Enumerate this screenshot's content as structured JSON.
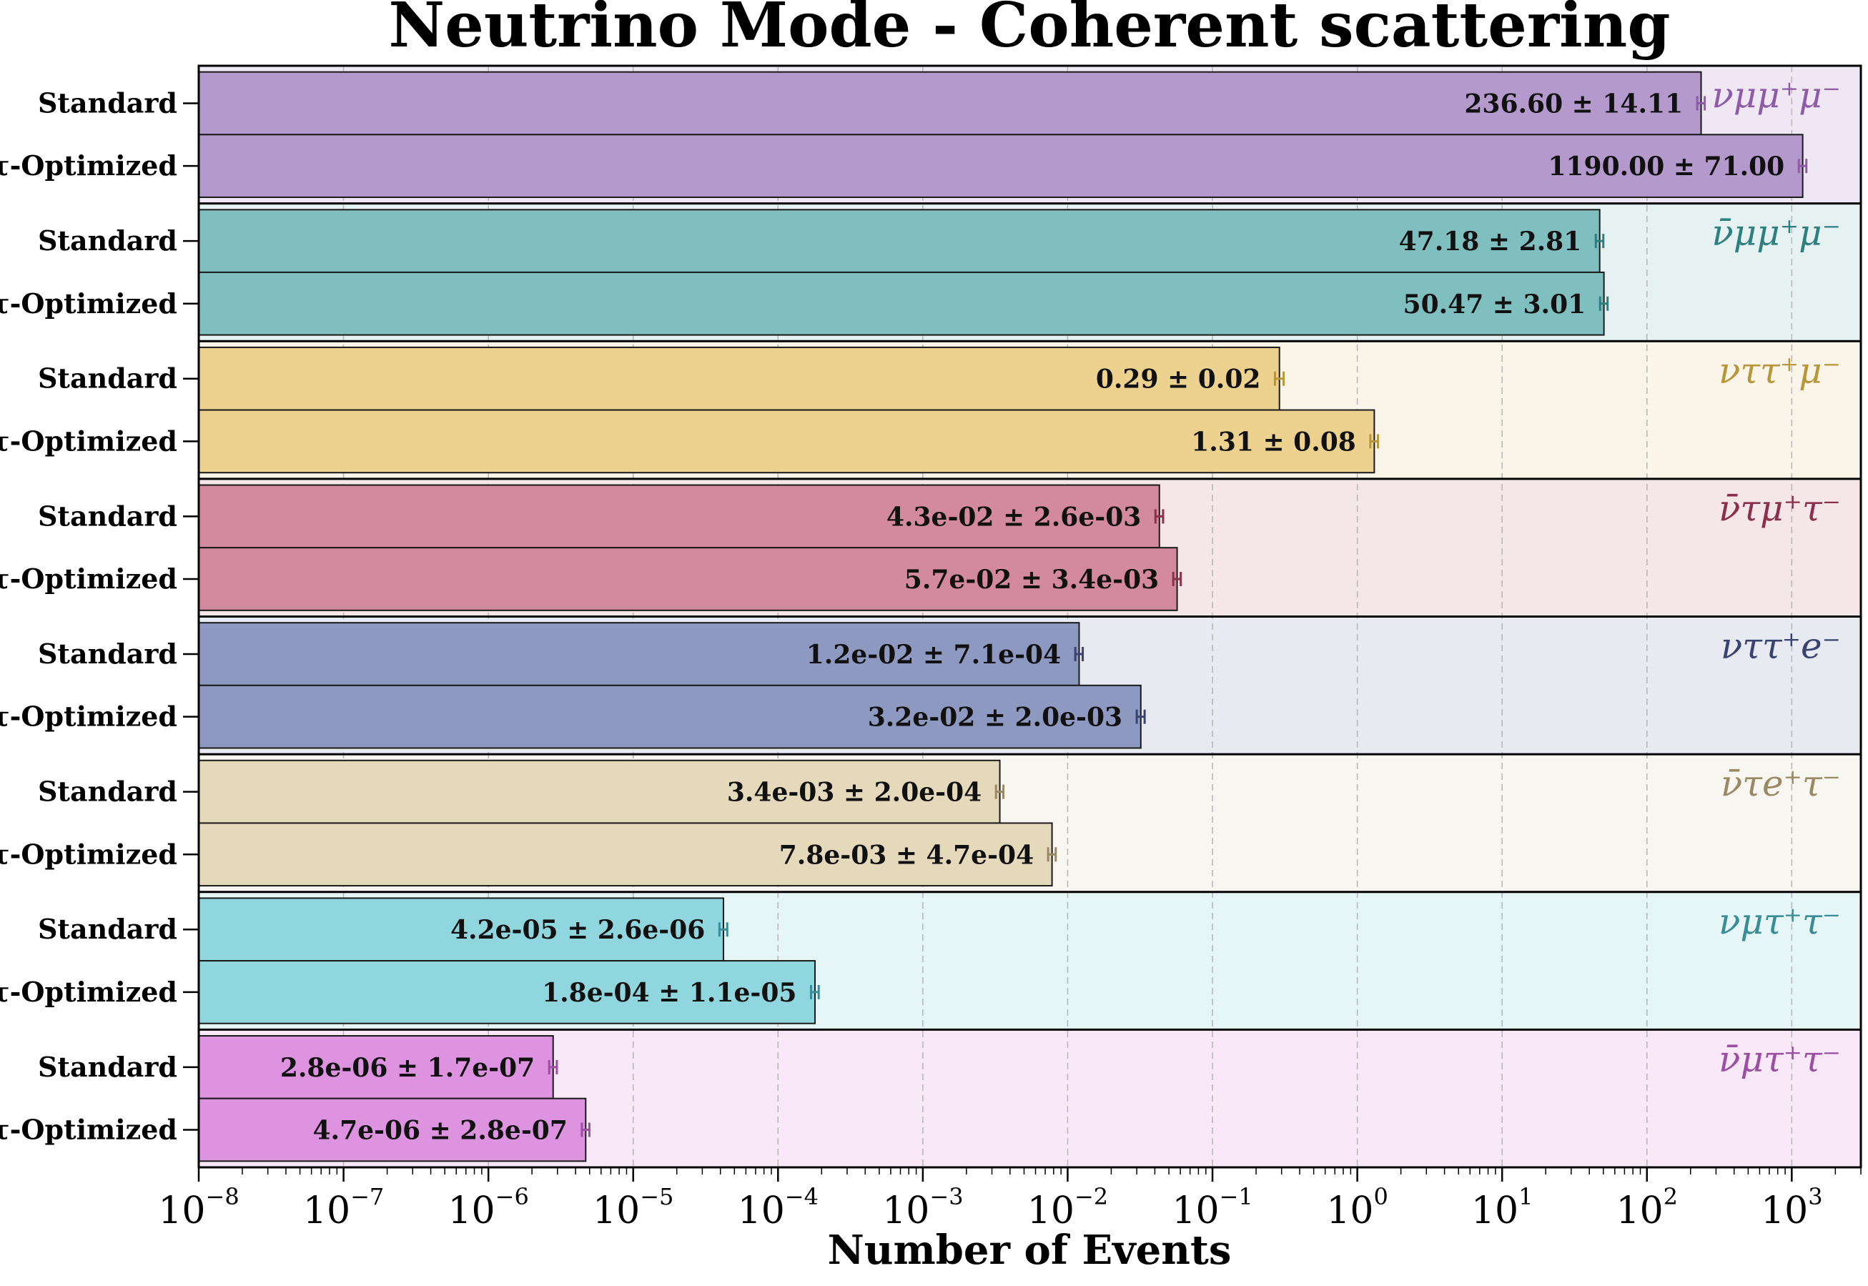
{
  "chart_data": {
    "type": "bar",
    "orientation": "horizontal",
    "title": "Neutrino Mode - Coherent scattering",
    "xlabel": "Number of Events",
    "xscale": "log",
    "xlim": [
      1e-08,
      3000
    ],
    "x_ticks": [
      "8",
      "7",
      "6",
      "5",
      "4",
      "3",
      "2",
      "1",
      "0",
      "1",
      "2",
      "3"
    ],
    "x_tick_signs": [
      "−",
      "−",
      "−",
      "−",
      "−",
      "−",
      "−",
      "−",
      "",
      "",
      "",
      ""
    ],
    "x_tick_base": "10",
    "grid": "vertical dashed",
    "modes": [
      "Standard",
      "τ-Optimized"
    ],
    "groups": [
      {
        "process": "νμμ⁺μ⁻",
        "color": "#8e5ba8",
        "bar_color": "#b399cc",
        "bg_color": "#efe8f4",
        "values": [
          236.6,
          1190.0
        ],
        "errors": [
          14.11,
          71.0
        ],
        "labels": [
          "236.60 ± 14.11",
          "1190.00 ± 71.00"
        ]
      },
      {
        "process": "ν̄μμ⁺μ⁻",
        "color": "#2e7f7f",
        "bar_color": "#80bfbf",
        "bg_color": "#e6f2f2",
        "values": [
          47.18,
          50.47
        ],
        "errors": [
          2.81,
          3.01
        ],
        "labels": [
          "47.18 ± 2.81",
          "50.47 ± 3.01"
        ]
      },
      {
        "process": "νττ⁺μ⁻",
        "color": "#b8963a",
        "bar_color": "#ecd18f",
        "bg_color": "#faf5e8",
        "values": [
          0.29,
          1.31
        ],
        "errors": [
          0.02,
          0.08
        ],
        "labels": [
          "0.29 ± 0.02",
          "1.31 ± 0.08"
        ]
      },
      {
        "process": "ν̄τμ⁺τ⁻",
        "color": "#8a2f4d",
        "bar_color": "#d3899f",
        "bg_color": "#f5e6ea",
        "values": [
          0.043,
          0.057
        ],
        "errors": [
          0.0026,
          0.0034
        ],
        "labels": [
          "4.3e-02 ± 2.6e-03",
          "5.7e-02 ± 3.4e-03"
        ]
      },
      {
        "process": "νττ⁺e⁻",
        "color": "#3a4270",
        "bar_color": "#8e99c2",
        "bg_color": "#e8eaf2",
        "values": [
          0.012,
          0.032
        ],
        "errors": [
          0.00071,
          0.002
        ],
        "labels": [
          "1.2e-02 ± 7.1e-04",
          "3.2e-02 ± 2.0e-03"
        ]
      },
      {
        "process": "ν̄τe⁺τ⁻",
        "color": "#9a8a64",
        "bar_color": "#e4d9bb",
        "bg_color": "#f8f6f0",
        "values": [
          0.0034,
          0.0078
        ],
        "errors": [
          0.0002,
          0.00047
        ],
        "labels": [
          "3.4e-03 ± 2.0e-04",
          "7.8e-03 ± 4.7e-04"
        ]
      },
      {
        "process": "νμτ⁺τ⁻",
        "color": "#3a8c96",
        "bar_color": "#90d6df",
        "bg_color": "#e6f6f7",
        "values": [
          4.2e-05,
          0.00018
        ],
        "errors": [
          2.6e-06,
          1.1e-05
        ],
        "labels": [
          "4.2e-05 ± 2.6e-06",
          "1.8e-04 ± 1.1e-05"
        ]
      },
      {
        "process": "ν̄μτ⁺τ⁻",
        "color": "#9a4fa3",
        "bar_color": "#de93e0",
        "bg_color": "#f9e9f8",
        "values": [
          2.8e-06,
          4.7e-06
        ],
        "errors": [
          1.7e-07,
          2.8e-07
        ],
        "labels": [
          "2.8e-06 ± 1.7e-07",
          "4.7e-06 ± 2.8e-07"
        ]
      }
    ]
  }
}
